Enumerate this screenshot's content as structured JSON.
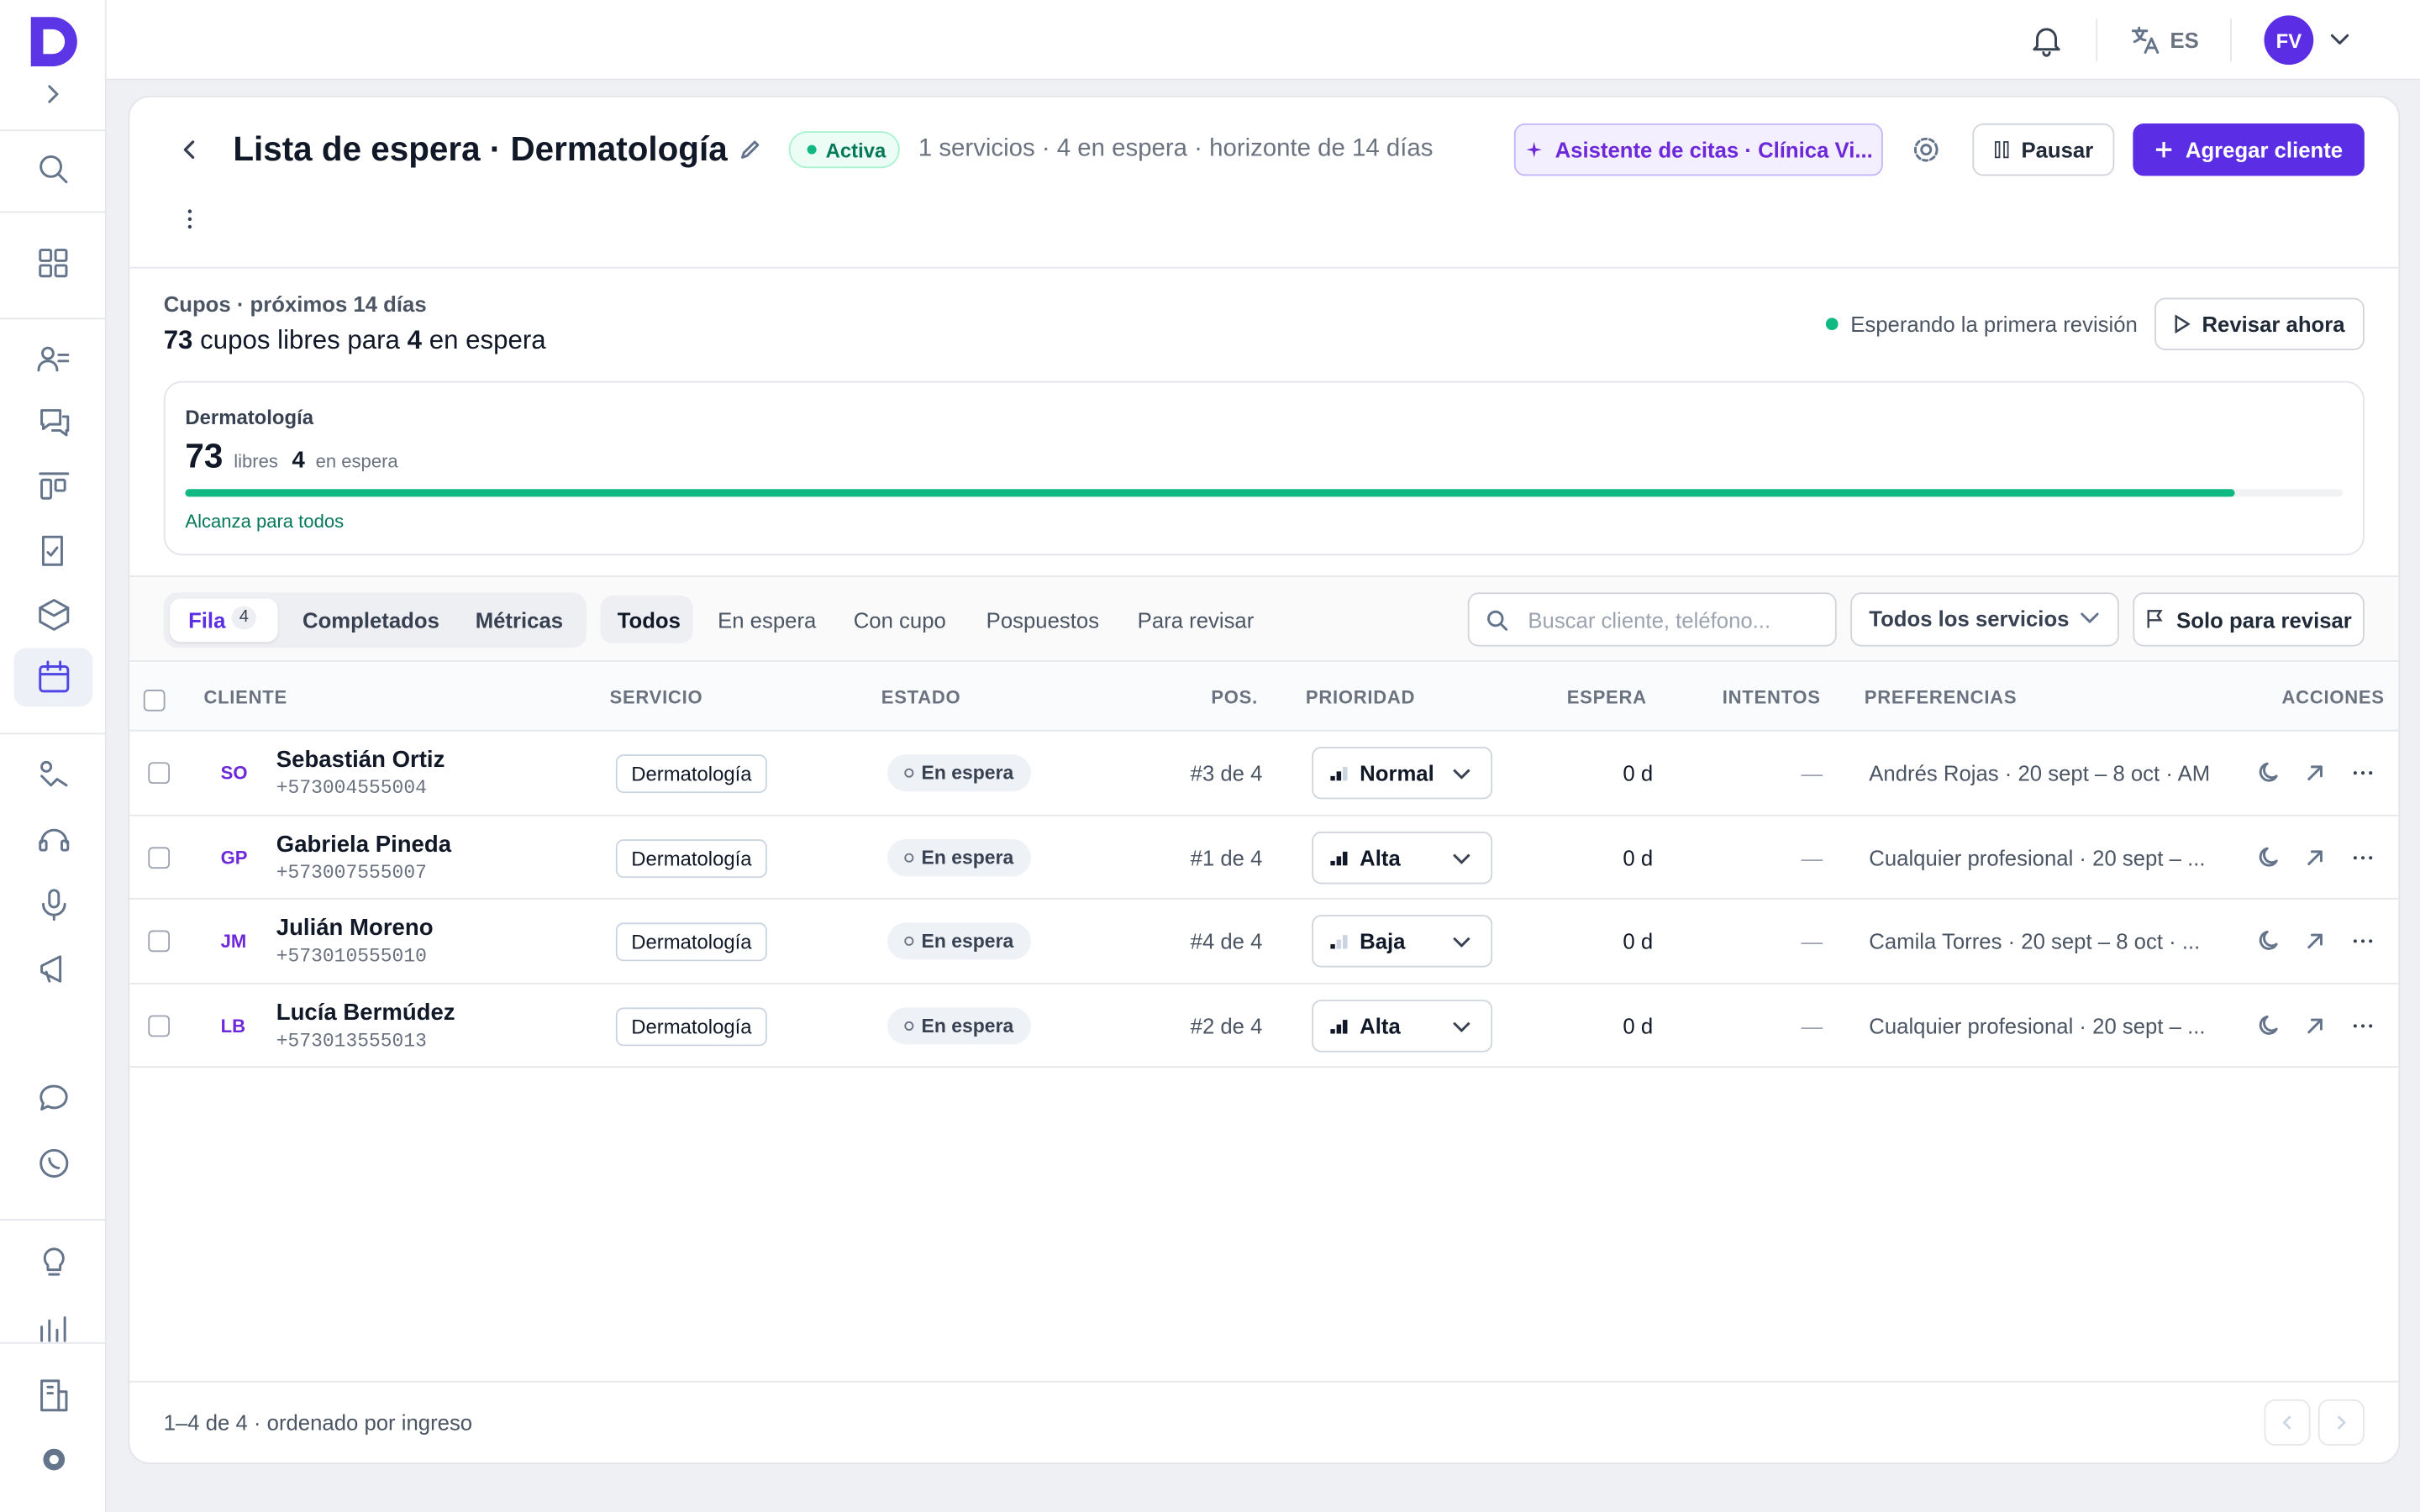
{
  "topbar": {
    "language": "ES",
    "avatar": "FV"
  },
  "header": {
    "title": "Lista de espera · Dermatología",
    "status": "Activa",
    "summary": "1 servicios · 4 en espera · horizonte de 14 días",
    "assistant": "Asistente de citas · Clínica Vi...",
    "pause": "Pausar",
    "add": "Agregar cliente"
  },
  "capacity": {
    "label": "Cupos · próximos 14 días",
    "free": 73,
    "free_text": "cupos libres para",
    "waiting": 4,
    "waiting_text": "en espera",
    "review_status": "Esperando la primera revisión",
    "review_button": "Revisar ahora",
    "service": {
      "name": "Dermatología",
      "free": 73,
      "free_label": "libres",
      "waiting": 4,
      "waiting_label": "en espera",
      "coverage": 95,
      "note": "Alcanza para todos"
    }
  },
  "tabs": [
    {
      "label": "Fila",
      "count": 4
    },
    {
      "label": "Completados"
    },
    {
      "label": "Métricas"
    }
  ],
  "filters": [
    "Todos",
    "En espera",
    "Con cupo",
    "Pospuestos",
    "Para revisar"
  ],
  "search_placeholder": "Buscar cliente, teléfono...",
  "service_select": "Todos los servicios",
  "review_only": "Solo para revisar",
  "table": {
    "columns": [
      "CLIENTE",
      "SERVICIO",
      "ESTADO",
      "POS.",
      "PRIORIDAD",
      "ESPERA",
      "INTENTOS",
      "PREFERENCIAS",
      "ACCIONES"
    ],
    "rows": [
      {
        "initials": "SO",
        "name": "Sebastián Ortiz",
        "phone": "+573004555004",
        "service": "Dermatología",
        "status": "En espera",
        "position": "#3 de 4",
        "priority": "Normal",
        "priority_level": 2,
        "wait": "0 d",
        "attempts": "—",
        "preferences": "Andrés Rojas · 20 sept – 8 oct · AM"
      },
      {
        "initials": "GP",
        "name": "Gabriela Pineda",
        "phone": "+573007555007",
        "service": "Dermatología",
        "status": "En espera",
        "position": "#1 de 4",
        "priority": "Alta",
        "priority_level": 3,
        "wait": "0 d",
        "attempts": "—",
        "preferences": "Cualquier profesional · 20 sept – ..."
      },
      {
        "initials": "JM",
        "name": "Julián Moreno",
        "phone": "+573010555010",
        "service": "Dermatología",
        "status": "En espera",
        "position": "#4 de 4",
        "priority": "Baja",
        "priority_level": 1,
        "wait": "0 d",
        "attempts": "—",
        "preferences": "Camila Torres · 20 sept – 8 oct · ..."
      },
      {
        "initials": "LB",
        "name": "Lucía Bermúdez",
        "phone": "+573013555013",
        "service": "Dermatología",
        "status": "En espera",
        "position": "#2 de 4",
        "priority": "Alta",
        "priority_level": 3,
        "wait": "0 d",
        "attempts": "—",
        "preferences": "Cualquier profesional · 20 sept – ..."
      }
    ]
  },
  "footer": "1–4 de 4 · ordenado por ingreso"
}
